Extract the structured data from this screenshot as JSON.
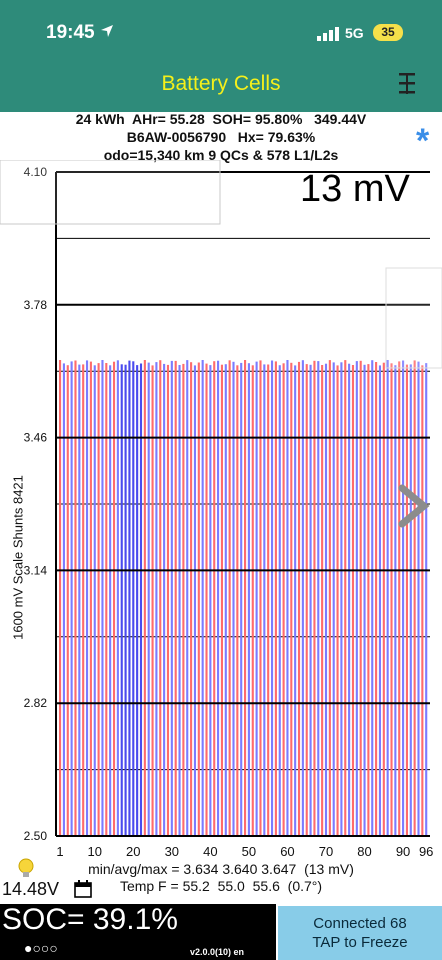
{
  "status": {
    "time": "19:45",
    "network": "5G",
    "battery": "35"
  },
  "app": {
    "title": "Battery Cells"
  },
  "header": {
    "line1": "24 kWh  AHr= 55.28  SOH= 95.80%   349.44V",
    "line2": "B6AW-0056790   Hx= 79.63%",
    "line3": "odo=15,340 km 9 QCs & 578 L1/L2s"
  },
  "delta": "13 mV",
  "yaxis_title": "1600 mV Scale   Shunts 8421",
  "chart_data": {
    "type": "bar",
    "title": "",
    "xlabel": "",
    "ylabel": "1600 mV Scale   Shunts 8421",
    "ylim": [
      2.5,
      4.1
    ],
    "yticks": [
      "4.10",
      "3.78",
      "3.46",
      "3.14",
      "2.82",
      "2.50"
    ],
    "xticks": [
      "1",
      "10",
      "20",
      "30",
      "40",
      "50",
      "60",
      "70",
      "80",
      "90",
      "96"
    ],
    "cell_count": 96,
    "min": 3.634,
    "avg": 3.64,
    "max": 3.647,
    "shunted_cells": [
      17,
      18,
      19,
      20,
      21,
      22
    ],
    "colors": {
      "odd": "#ff6b6b",
      "even": "#7b7bff",
      "shunt": "#4a4aee"
    }
  },
  "stats": {
    "line1": "min/avg/max = 3.634 3.640 3.647  (13 mV)",
    "line2": "Temp F = 55.2  55.0  55.6  (0.7°)"
  },
  "footer": {
    "volts": "14.48V",
    "soc": "SOC= 39.1%",
    "dots": "●○○○",
    "version": "v2.0.0(10) en",
    "connected_line1": "Connected 68",
    "connected_line2": "TAP to Freeze"
  }
}
